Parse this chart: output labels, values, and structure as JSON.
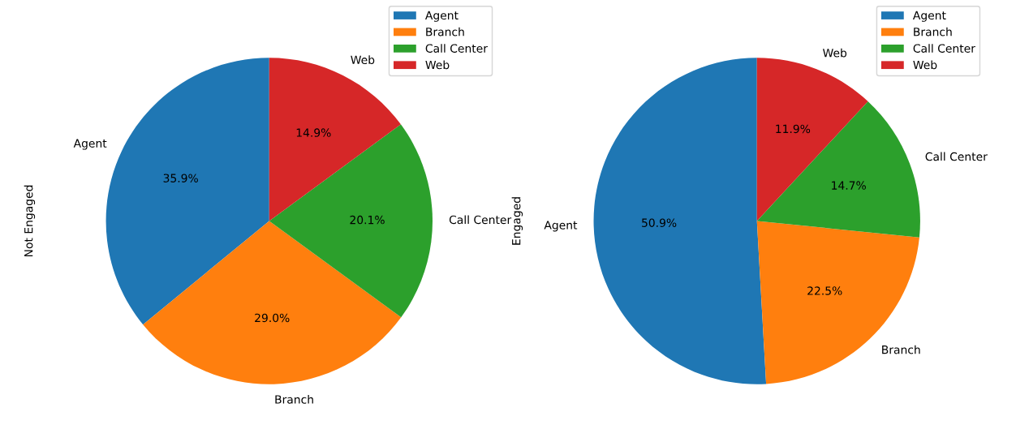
{
  "chart_data": [
    {
      "type": "pie",
      "ylabel": "Not Engaged",
      "categories": [
        "Agent",
        "Branch",
        "Call Center",
        "Web"
      ],
      "values": [
        35.9,
        29.0,
        20.1,
        14.9
      ],
      "colors": [
        "#1f77b4",
        "#ff7f0e",
        "#2ca02c",
        "#d62728"
      ],
      "value_labels": [
        "35.9%",
        "29.0%",
        "20.1%",
        "14.9%"
      ],
      "legend": "top right"
    },
    {
      "type": "pie",
      "ylabel": "Engaged",
      "categories": [
        "Agent",
        "Branch",
        "Call Center",
        "Web"
      ],
      "values": [
        50.9,
        22.5,
        14.7,
        11.9
      ],
      "colors": [
        "#1f77b4",
        "#ff7f0e",
        "#2ca02c",
        "#d62728"
      ],
      "value_labels": [
        "50.9%",
        "22.5%",
        "14.7%",
        "11.9%"
      ],
      "legend": "top right"
    }
  ]
}
